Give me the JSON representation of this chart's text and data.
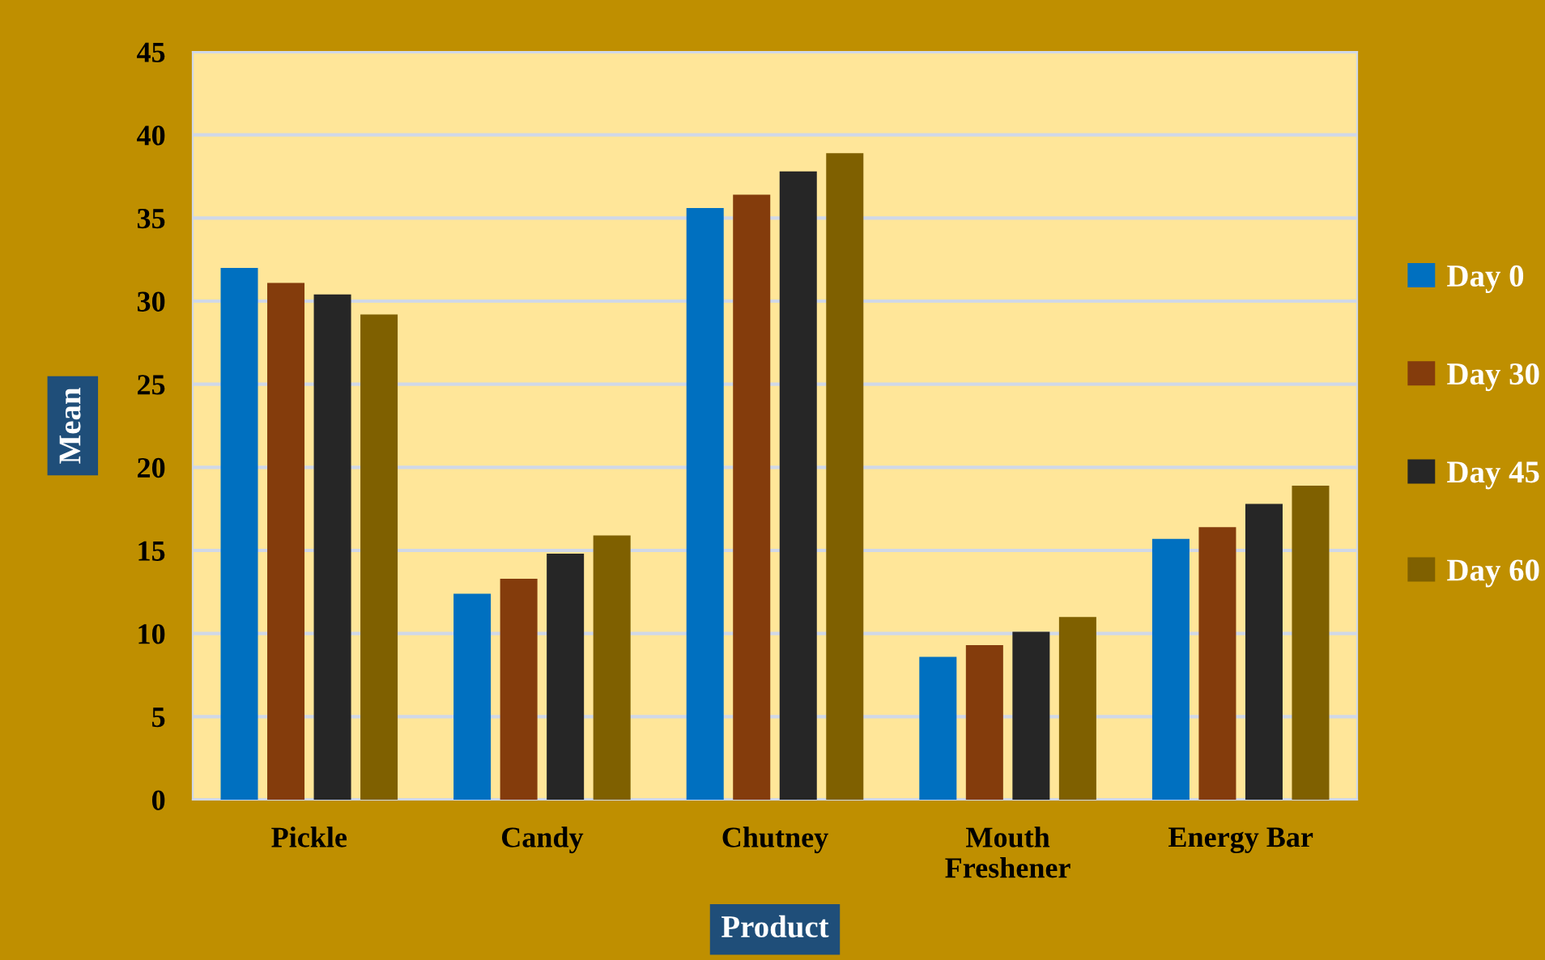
{
  "chart_data": {
    "type": "bar",
    "xlabel": "Product",
    "ylabel": "Mean",
    "categories": [
      "Pickle",
      "Candy",
      "Chutney",
      "Mouth\nFreshener",
      "Energy Bar"
    ],
    "series": [
      {
        "name": "Day 0",
        "color": "#0070c0",
        "values": [
          32.0,
          12.4,
          35.6,
          8.6,
          15.7
        ]
      },
      {
        "name": "Day 30",
        "color": "#843c0c",
        "values": [
          31.1,
          13.3,
          36.4,
          9.3,
          16.4
        ]
      },
      {
        "name": "Day 45",
        "color": "#262626",
        "values": [
          30.4,
          14.8,
          37.8,
          10.1,
          17.8
        ]
      },
      {
        "name": "Day 60",
        "color": "#7f6000",
        "values": [
          29.2,
          15.9,
          38.9,
          11.0,
          18.9
        ]
      }
    ],
    "ylim": [
      0,
      45
    ],
    "yticks": [
      0,
      5,
      10,
      15,
      20,
      25,
      30,
      35,
      40,
      45
    ],
    "grid": "y",
    "legend": "right"
  }
}
